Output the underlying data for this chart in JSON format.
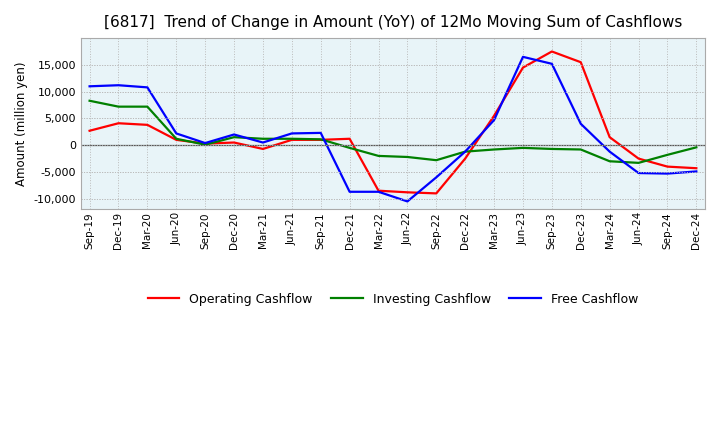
{
  "title": "[6817]  Trend of Change in Amount (YoY) of 12Mo Moving Sum of Cashflows",
  "ylabel": "Amount (million yen)",
  "x_labels": [
    "Sep-19",
    "Dec-19",
    "Mar-20",
    "Jun-20",
    "Sep-20",
    "Dec-20",
    "Mar-21",
    "Jun-21",
    "Sep-21",
    "Dec-21",
    "Mar-22",
    "Jun-22",
    "Sep-22",
    "Dec-22",
    "Mar-23",
    "Jun-23",
    "Sep-23",
    "Dec-23",
    "Mar-24",
    "Jun-24",
    "Sep-24",
    "Dec-24"
  ],
  "operating": [
    2700,
    4100,
    3800,
    1000,
    300,
    500,
    -700,
    1000,
    1000,
    1200,
    -8500,
    -8800,
    -9000,
    -2500,
    5500,
    14500,
    17500,
    15500,
    1500,
    -2500,
    -4000,
    -4300
  ],
  "investing": [
    8300,
    7200,
    7200,
    1200,
    100,
    1500,
    1200,
    1200,
    1100,
    -500,
    -2000,
    -2200,
    -2800,
    -1200,
    -800,
    -500,
    -700,
    -800,
    -3000,
    -3300,
    -1800,
    -400
  ],
  "free": [
    11000,
    11200,
    10800,
    2200,
    400,
    2000,
    500,
    2200,
    2300,
    -8700,
    -8700,
    -10500,
    -6000,
    -1200,
    4700,
    16500,
    15200,
    4000,
    -1200,
    -5200,
    -5300,
    -4900
  ],
  "operating_color": "#ff0000",
  "investing_color": "#008000",
  "free_color": "#0000ff",
  "ylim": [
    -12000,
    20000
  ],
  "yticks": [
    -10000,
    -5000,
    0,
    5000,
    10000,
    15000
  ],
  "background_color": "#ffffff",
  "plot_bg_color": "#e8f4f8",
  "grid_color": "#bbbbbb",
  "title_fontsize": 11,
  "legend_labels": [
    "Operating Cashflow",
    "Investing Cashflow",
    "Free Cashflow"
  ]
}
